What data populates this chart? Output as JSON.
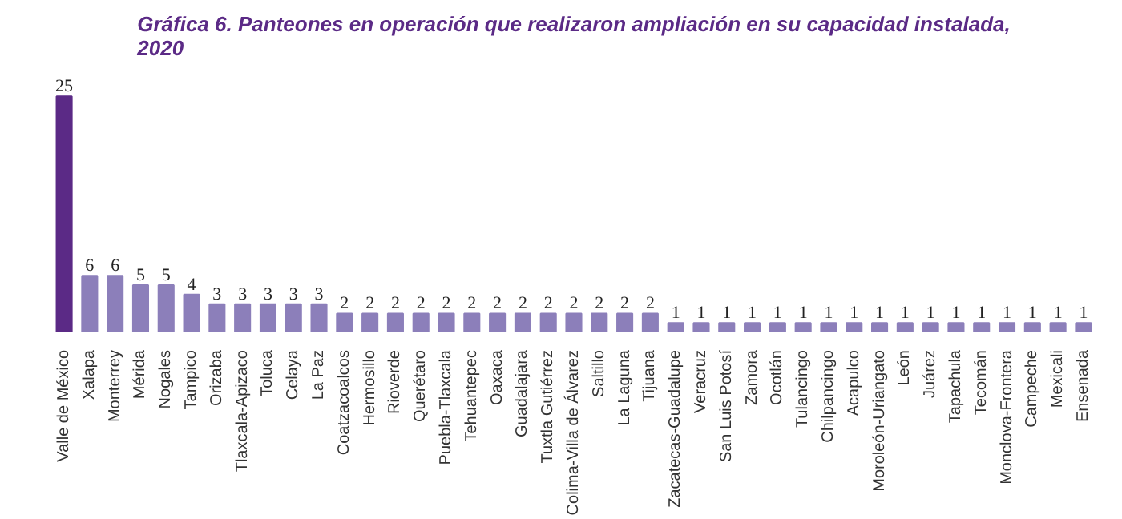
{
  "chart_data": {
    "type": "bar",
    "title": "Gráfica 6. Panteones en operación que realizaron ampliación en su capacidad instalada,\n2020",
    "categories": [
      "Valle de México",
      "Xalapa",
      "Monterrey",
      "Mérida",
      "Nogales",
      "Tampico",
      "Orizaba",
      "Tlaxcala-Apizaco",
      "Toluca",
      "Celaya",
      "La Paz",
      "Coatzacoalcos",
      "Hermosillo",
      "Rioverde",
      "Querétaro",
      "Puebla-Tlaxcala",
      "Tehuantepec",
      "Oaxaca",
      "Guadalajara",
      "Tuxtla Gutiérrez",
      "Colima-Villa de Álvarez",
      "Saltillo",
      "La Laguna",
      "Tijuana",
      "Zacatecas-Guadalupe",
      "Veracruz",
      "San Luis Potosí",
      "Zamora",
      "Ocotlán",
      "Tulancingo",
      "Chilpancingo",
      "Acapulco",
      "Moroleón-Uriangato",
      "León",
      "Juárez",
      "Tapachula",
      "Tecomán",
      "Monclova-Frontera",
      "Campeche",
      "Mexicali",
      "Ensenada"
    ],
    "values": [
      25,
      6,
      6,
      5,
      5,
      4,
      3,
      3,
      3,
      3,
      3,
      2,
      2,
      2,
      2,
      2,
      2,
      2,
      2,
      2,
      2,
      2,
      2,
      2,
      1,
      1,
      1,
      1,
      1,
      1,
      1,
      1,
      1,
      1,
      1,
      1,
      1,
      1,
      1,
      1,
      1
    ],
    "colors": [
      "#5b2a86",
      "#8c7fba",
      "#8c7fba",
      "#8c7fba",
      "#8c7fba",
      "#8c7fba",
      "#8c7fba",
      "#8c7fba",
      "#8c7fba",
      "#8c7fba",
      "#8c7fba",
      "#8c7fba",
      "#8c7fba",
      "#8c7fba",
      "#8c7fba",
      "#8c7fba",
      "#8c7fba",
      "#8c7fba",
      "#8c7fba",
      "#8c7fba",
      "#8c7fba",
      "#8c7fba",
      "#8c7fba",
      "#8c7fba",
      "#8c7fba",
      "#8c7fba",
      "#8c7fba",
      "#8c7fba",
      "#8c7fba",
      "#8c7fba",
      "#8c7fba",
      "#8c7fba",
      "#8c7fba",
      "#8c7fba",
      "#8c7fba",
      "#8c7fba",
      "#8c7fba",
      "#8c7fba",
      "#8c7fba",
      "#8c7fba",
      "#8c7fba"
    ],
    "data_labels": true
  }
}
